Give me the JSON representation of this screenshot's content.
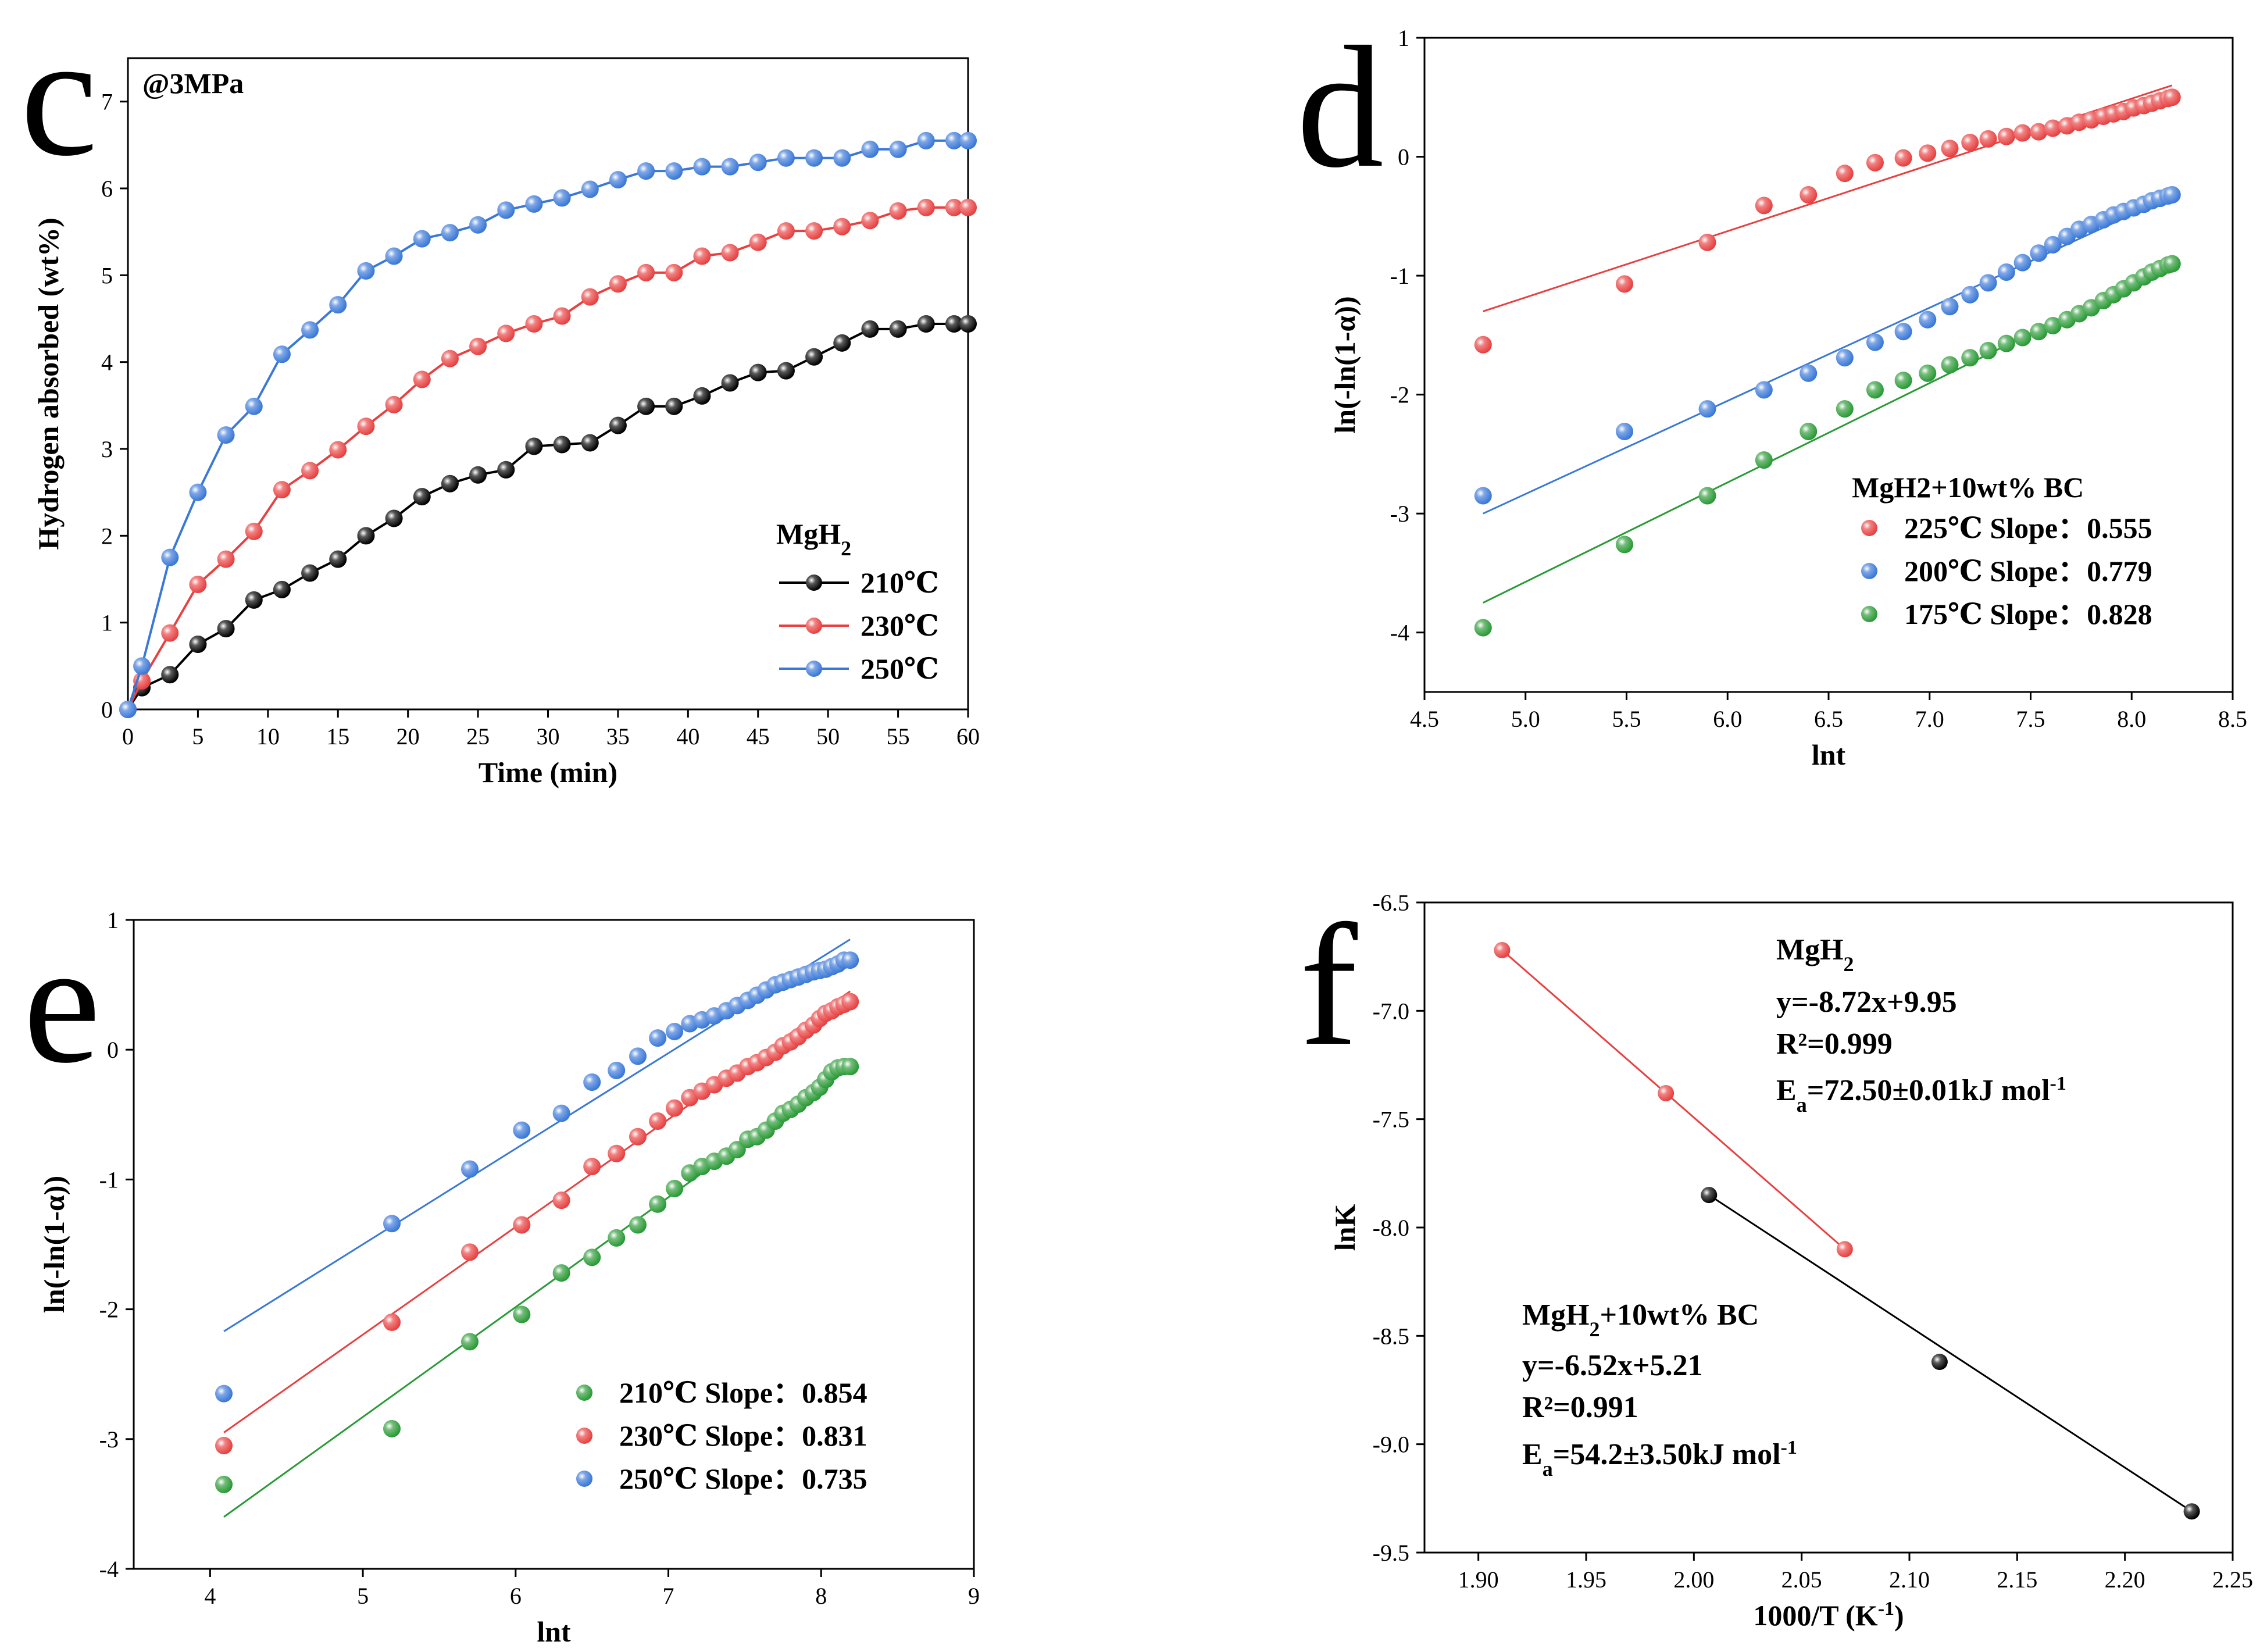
{
  "chart_data": [
    {
      "id": "c",
      "type": "line",
      "panel_label": "c",
      "annotation": "@3MPa",
      "xlabel": "Time (min)",
      "ylabel": "Hydrogen absorbed (wt%)",
      "xlim": [
        0,
        60
      ],
      "ylim": [
        0,
        7.5
      ],
      "xticks": [
        0,
        5,
        10,
        15,
        20,
        25,
        30,
        35,
        40,
        45,
        50,
        55,
        60
      ],
      "yticks": [
        0,
        1,
        2,
        3,
        4,
        5,
        6,
        7
      ],
      "legend_title": "MgH2",
      "legend_title_main": "MgH",
      "legend_title_sub": "2",
      "series": [
        {
          "name": "210℃",
          "color": "#000000",
          "x": [
            0,
            1,
            3,
            5,
            7,
            9,
            11,
            13,
            15,
            17,
            19,
            21,
            23,
            25,
            27,
            29,
            31,
            33,
            35,
            37,
            39,
            41,
            43,
            45,
            47,
            49,
            51,
            53,
            55,
            57,
            59,
            60
          ],
          "y": [
            0,
            0.25,
            0.4,
            0.75,
            0.93,
            1.26,
            1.38,
            1.57,
            1.73,
            2.0,
            2.2,
            2.45,
            2.6,
            2.7,
            2.76,
            3.03,
            3.05,
            3.07,
            3.27,
            3.49,
            3.49,
            3.61,
            3.76,
            3.88,
            3.9,
            4.06,
            4.22,
            4.38,
            4.38,
            4.44,
            4.44,
            4.44
          ]
        },
        {
          "name": "230℃",
          "color": "#e84040",
          "x": [
            0,
            1,
            3,
            5,
            7,
            9,
            11,
            13,
            15,
            17,
            19,
            21,
            23,
            25,
            27,
            29,
            31,
            33,
            35,
            37,
            39,
            41,
            43,
            45,
            47,
            49,
            51,
            53,
            55,
            57,
            59,
            60
          ],
          "y": [
            0,
            0.33,
            0.88,
            1.44,
            1.73,
            2.05,
            2.53,
            2.75,
            2.99,
            3.26,
            3.51,
            3.8,
            4.04,
            4.18,
            4.33,
            4.44,
            4.53,
            4.75,
            4.9,
            5.03,
            5.03,
            5.22,
            5.26,
            5.38,
            5.51,
            5.51,
            5.56,
            5.63,
            5.74,
            5.78,
            5.78,
            5.78
          ]
        },
        {
          "name": "250℃",
          "color": "#3a78d8",
          "x": [
            0,
            1,
            3,
            5,
            7,
            9,
            11,
            13,
            15,
            17,
            19,
            21,
            23,
            25,
            27,
            29,
            31,
            33,
            35,
            37,
            39,
            41,
            43,
            45,
            47,
            49,
            51,
            53,
            55,
            57,
            59,
            60
          ],
          "y": [
            0,
            0.5,
            1.75,
            2.5,
            3.16,
            3.49,
            4.09,
            4.37,
            4.66,
            5.05,
            5.22,
            5.42,
            5.49,
            5.58,
            5.75,
            5.82,
            5.89,
            5.99,
            6.1,
            6.2,
            6.2,
            6.25,
            6.25,
            6.3,
            6.35,
            6.35,
            6.35,
            6.45,
            6.45,
            6.55,
            6.55,
            6.55
          ]
        }
      ]
    },
    {
      "id": "d",
      "type": "scatter",
      "panel_label": "d",
      "xlabel": "lnt",
      "ylabel": "ln(-ln(1-α))",
      "xlim": [
        4.5,
        8.5
      ],
      "ylim": [
        -4.5,
        1
      ],
      "xticks": [
        4.5,
        5.0,
        5.5,
        6.0,
        6.5,
        7.0,
        7.5,
        8.0,
        8.5
      ],
      "xtick_labels": [
        "4.5",
        "5.0",
        "5.5",
        "6.0",
        "6.5",
        "7.0",
        "7.5",
        "8.0",
        "8.5"
      ],
      "yticks": [
        1,
        0,
        -1,
        -2,
        -3,
        -4
      ],
      "legend_title": "MgH2+10wt% BC",
      "series": [
        {
          "name": "225℃ Slope：0.555",
          "color": "#e84040",
          "x": [
            4.79,
            5.49,
            5.9,
            6.18,
            6.4,
            6.58,
            6.73,
            6.87,
            6.99,
            7.1,
            7.2,
            7.29,
            7.38,
            7.46,
            7.54,
            7.61,
            7.68,
            7.74,
            7.8,
            7.86,
            7.91,
            7.96,
            8.01,
            8.06,
            8.1,
            8.14,
            8.18,
            8.2
          ],
          "y": [
            -1.58,
            -1.07,
            -0.72,
            -0.41,
            -0.32,
            -0.14,
            -0.05,
            -0.01,
            0.03,
            0.07,
            0.12,
            0.15,
            0.17,
            0.2,
            0.21,
            0.24,
            0.26,
            0.29,
            0.31,
            0.34,
            0.36,
            0.38,
            0.41,
            0.43,
            0.45,
            0.47,
            0.49,
            0.5
          ],
          "fit": [
            [
              4.79,
              -1.3
            ],
            [
              8.2,
              0.6
            ]
          ]
        },
        {
          "name": "200℃ Slope：0.779",
          "color": "#3a78d8",
          "x": [
            4.79,
            5.49,
            5.9,
            6.18,
            6.4,
            6.58,
            6.73,
            6.87,
            6.99,
            7.1,
            7.2,
            7.29,
            7.38,
            7.46,
            7.54,
            7.61,
            7.68,
            7.74,
            7.8,
            7.86,
            7.91,
            7.96,
            8.01,
            8.06,
            8.1,
            8.14,
            8.18,
            8.2
          ],
          "y": [
            -2.85,
            -2.31,
            -2.12,
            -1.96,
            -1.82,
            -1.69,
            -1.56,
            -1.47,
            -1.37,
            -1.26,
            -1.16,
            -1.06,
            -0.97,
            -0.89,
            -0.81,
            -0.74,
            -0.67,
            -0.61,
            -0.57,
            -0.53,
            -0.49,
            -0.46,
            -0.43,
            -0.4,
            -0.37,
            -0.35,
            -0.33,
            -0.32
          ],
          "fit": [
            [
              4.79,
              -3.0
            ],
            [
              8.2,
              -0.33
            ]
          ]
        },
        {
          "name": "175℃ Slope：0.828",
          "color": "#2a9a36",
          "x": [
            4.79,
            5.49,
            5.9,
            6.18,
            6.4,
            6.58,
            6.73,
            6.87,
            6.99,
            7.1,
            7.2,
            7.29,
            7.38,
            7.46,
            7.54,
            7.61,
            7.68,
            7.74,
            7.8,
            7.86,
            7.91,
            7.96,
            8.01,
            8.06,
            8.1,
            8.14,
            8.18,
            8.2
          ],
          "y": [
            -3.96,
            -3.26,
            -2.85,
            -2.55,
            -2.31,
            -2.12,
            -1.96,
            -1.88,
            -1.82,
            -1.75,
            -1.69,
            -1.63,
            -1.57,
            -1.52,
            -1.47,
            -1.42,
            -1.37,
            -1.32,
            -1.27,
            -1.21,
            -1.16,
            -1.11,
            -1.06,
            -1.01,
            -0.97,
            -0.94,
            -0.91,
            -0.9
          ],
          "fit": [
            [
              4.79,
              -3.75
            ],
            [
              8.2,
              -0.9
            ]
          ]
        }
      ]
    },
    {
      "id": "e",
      "type": "scatter",
      "panel_label": "e",
      "xlabel": "lnt",
      "ylabel": "ln(-ln(1-α))",
      "xlim": [
        3.5,
        9
      ],
      "ylim": [
        -4,
        1
      ],
      "xticks": [
        4,
        5,
        6,
        7,
        8,
        9
      ],
      "xtick_labels": [
        "4",
        "5",
        "6",
        "7",
        "8",
        "9"
      ],
      "yticks": [
        1,
        0,
        -1,
        -2,
        -3,
        -4
      ],
      "series": [
        {
          "name": "210℃ Slope：0.854",
          "color": "#2a9a36",
          "x": [
            4.09,
            5.19,
            5.7,
            6.04,
            6.3,
            6.5,
            6.66,
            6.8,
            6.93,
            7.04,
            7.14,
            7.22,
            7.3,
            7.38,
            7.45,
            7.52,
            7.58,
            7.64,
            7.7,
            7.75,
            7.8,
            7.85,
            7.9,
            7.95,
            7.99,
            8.03,
            8.07,
            8.11,
            8.15,
            8.19
          ],
          "y": [
            -3.35,
            -2.92,
            -2.25,
            -2.04,
            -1.72,
            -1.6,
            -1.45,
            -1.35,
            -1.19,
            -1.07,
            -0.95,
            -0.9,
            -0.86,
            -0.82,
            -0.77,
            -0.69,
            -0.67,
            -0.62,
            -0.55,
            -0.49,
            -0.46,
            -0.42,
            -0.37,
            -0.33,
            -0.29,
            -0.23,
            -0.17,
            -0.14,
            -0.13,
            -0.13
          ],
          "fit": [
            [
              4.09,
              -3.6
            ],
            [
              8.19,
              -0.13
            ]
          ]
        },
        {
          "name": "230℃ Slope：0.831",
          "color": "#e84040",
          "x": [
            4.09,
            5.19,
            5.7,
            6.04,
            6.3,
            6.5,
            6.66,
            6.8,
            6.93,
            7.04,
            7.14,
            7.22,
            7.3,
            7.38,
            7.45,
            7.52,
            7.58,
            7.64,
            7.7,
            7.75,
            7.8,
            7.85,
            7.9,
            7.95,
            7.99,
            8.03,
            8.07,
            8.11,
            8.15,
            8.19
          ],
          "y": [
            -3.05,
            -2.1,
            -1.56,
            -1.35,
            -1.16,
            -0.9,
            -0.8,
            -0.67,
            -0.55,
            -0.45,
            -0.37,
            -0.32,
            -0.27,
            -0.22,
            -0.18,
            -0.13,
            -0.1,
            -0.06,
            -0.02,
            0.03,
            0.06,
            0.1,
            0.15,
            0.19,
            0.24,
            0.28,
            0.3,
            0.33,
            0.35,
            0.37
          ],
          "fit": [
            [
              4.09,
              -2.95
            ],
            [
              8.19,
              0.45
            ]
          ]
        },
        {
          "name": "250℃ Slope：0.735",
          "color": "#3a78d8",
          "x": [
            4.09,
            5.19,
            5.7,
            6.04,
            6.3,
            6.5,
            6.66,
            6.8,
            6.93,
            7.04,
            7.14,
            7.22,
            7.3,
            7.38,
            7.45,
            7.52,
            7.58,
            7.64,
            7.7,
            7.75,
            7.8,
            7.85,
            7.9,
            7.95,
            7.99,
            8.03,
            8.07,
            8.11,
            8.15,
            8.19
          ],
          "y": [
            -2.65,
            -1.34,
            -0.92,
            -0.62,
            -0.49,
            -0.25,
            -0.16,
            -0.05,
            0.09,
            0.14,
            0.2,
            0.23,
            0.26,
            0.3,
            0.34,
            0.38,
            0.42,
            0.46,
            0.5,
            0.52,
            0.54,
            0.56,
            0.58,
            0.6,
            0.61,
            0.62,
            0.64,
            0.66,
            0.69,
            0.69
          ],
          "fit": [
            [
              4.09,
              -2.17
            ],
            [
              8.19,
              0.85
            ]
          ]
        }
      ]
    },
    {
      "id": "f",
      "type": "scatter",
      "panel_label": "f",
      "xlabel_main": "1000/T (K",
      "xlabel_sup": "-1",
      "xlabel_end": ")",
      "ylabel": "lnK",
      "xlim": [
        1.875,
        2.25
      ],
      "ylim": [
        -9.5,
        -6.5
      ],
      "xticks": [
        1.9,
        1.95,
        2.0,
        2.05,
        2.1,
        2.15,
        2.2,
        2.25
      ],
      "xtick_labels": [
        "1.90",
        "1.95",
        "2.00",
        "2.05",
        "2.10",
        "2.15",
        "2.20",
        "2.25"
      ],
      "yticks": [
        -6.5,
        -7.0,
        -7.5,
        -8.0,
        -8.5,
        -9.0,
        -9.5
      ],
      "ytick_labels": [
        "-6.5",
        "-7.0",
        "-7.5",
        "-8.0",
        "-8.5",
        "-9.0",
        "-9.5"
      ],
      "series": [
        {
          "name": "MgH2",
          "color": "#e84040",
          "x": [
            1.911,
            1.987,
            2.07
          ],
          "y": [
            -6.72,
            -7.38,
            -8.1
          ],
          "fit": [
            [
              1.911,
              -6.72
            ],
            [
              2.07,
              -8.1
            ]
          ]
        },
        {
          "name": "MgH2+10wt% BC",
          "color": "#000000",
          "x": [
            2.007,
            2.114,
            2.231
          ],
          "y": [
            -7.85,
            -8.62,
            -9.31
          ],
          "fit": [
            [
              2.007,
              -7.85
            ],
            [
              2.231,
              -9.31
            ]
          ]
        }
      ],
      "annotations": {
        "mgh2": {
          "title_main": "MgH",
          "title_sub": "2",
          "equation": "y=-8.72x+9.95",
          "r2": "R²=0.999",
          "ea_prefix": "E",
          "ea_sub": "a",
          "ea_value": "=72.50±0.01kJ mol",
          "ea_sup": "-1"
        },
        "bc": {
          "title_main": "MgH",
          "title_sub": "2",
          "title_rest": "+10wt% BC",
          "equation": "y=-6.52x+5.21",
          "r2": "R²=0.991",
          "ea_prefix": "E",
          "ea_sub": "a",
          "ea_value": "=54.2±3.50kJ mol",
          "ea_sup": "-1"
        }
      }
    }
  ]
}
